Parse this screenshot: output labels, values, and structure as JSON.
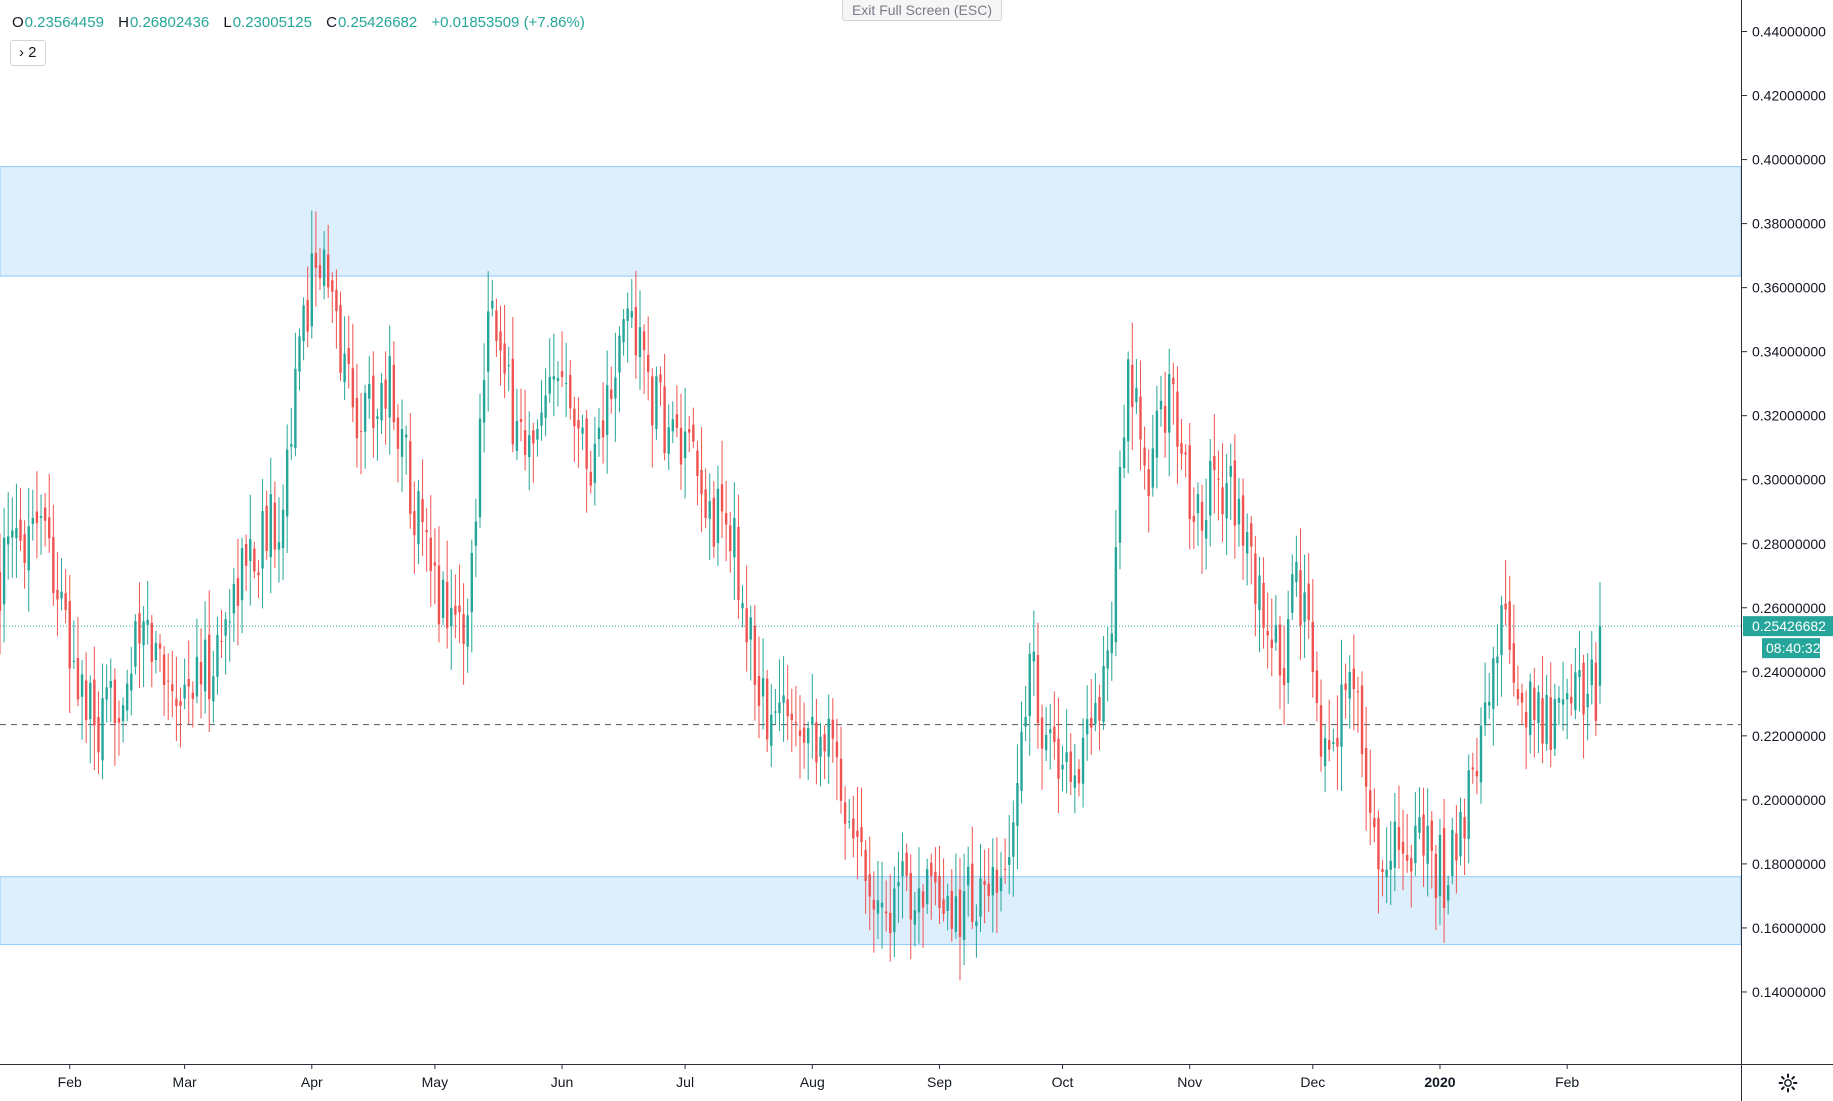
{
  "header": {
    "ohlc": [
      {
        "key": "O",
        "value": "0.23564459"
      },
      {
        "key": "H",
        "value": "0.26802436"
      },
      {
        "key": "L",
        "value": "0.23005125"
      },
      {
        "key": "C",
        "value": "0.25426682"
      }
    ],
    "change": "+0.01853509 (+7.86%)",
    "indicator_toggle": "2",
    "exit_fullscreen": "Exit Full Screen (ESC)"
  },
  "price_badge": {
    "value": "0.25426682",
    "countdown": "08:40:32"
  },
  "colors": {
    "up": "#26a69a",
    "down": "#ef5350",
    "zone": "#bbdefb",
    "zone_border": "#90caf9"
  },
  "chart_data": {
    "type": "candlestick",
    "ylim": [
      0.12,
      0.445
    ],
    "y_ticks": [
      "0.14000000",
      "0.16000000",
      "0.18000000",
      "0.20000000",
      "0.22000000",
      "0.24000000",
      "0.26000000",
      "0.28000000",
      "0.30000000",
      "0.32000000",
      "0.34000000",
      "0.36000000",
      "0.38000000",
      "0.40000000",
      "0.42000000",
      "0.44000000"
    ],
    "x_ticks": [
      {
        "label": "Feb",
        "day": 17
      },
      {
        "label": "Mar",
        "day": 45
      },
      {
        "label": "Apr",
        "day": 76
      },
      {
        "label": "May",
        "day": 106
      },
      {
        "label": "Jun",
        "day": 137
      },
      {
        "label": "Jul",
        "day": 167
      },
      {
        "label": "Aug",
        "day": 198
      },
      {
        "label": "Sep",
        "day": 229
      },
      {
        "label": "Oct",
        "day": 259
      },
      {
        "label": "Nov",
        "day": 290
      },
      {
        "label": "Dec",
        "day": 320
      },
      {
        "label": "2020",
        "day": 351,
        "bold": true
      },
      {
        "label": "Feb",
        "day": 382
      }
    ],
    "x_range": [
      0,
      400
    ],
    "zones": [
      {
        "low": 0.3636,
        "high": 0.3978
      },
      {
        "low": 0.1548,
        "high": 0.176
      }
    ],
    "dashed_level": 0.2235,
    "last_price": 0.25426682,
    "anchors": [
      [
        0,
        0.27
      ],
      [
        10,
        0.295
      ],
      [
        17,
        0.245
      ],
      [
        24,
        0.218
      ],
      [
        35,
        0.252
      ],
      [
        44,
        0.234
      ],
      [
        52,
        0.242
      ],
      [
        58,
        0.27
      ],
      [
        68,
        0.29
      ],
      [
        77,
        0.375
      ],
      [
        87,
        0.32
      ],
      [
        95,
        0.33
      ],
      [
        100,
        0.3
      ],
      [
        105,
        0.268
      ],
      [
        114,
        0.254
      ],
      [
        119,
        0.362
      ],
      [
        123,
        0.328
      ],
      [
        130,
        0.306
      ],
      [
        138,
        0.34
      ],
      [
        143,
        0.305
      ],
      [
        150,
        0.33
      ],
      [
        153,
        0.355
      ],
      [
        160,
        0.322
      ],
      [
        168,
        0.305
      ],
      [
        172,
        0.29
      ],
      [
        178,
        0.285
      ],
      [
        182,
        0.255
      ],
      [
        187,
        0.224
      ],
      [
        194,
        0.23
      ],
      [
        202,
        0.218
      ],
      [
        210,
        0.185
      ],
      [
        215,
        0.165
      ],
      [
        225,
        0.176
      ],
      [
        229,
        0.16
      ],
      [
        236,
        0.17
      ],
      [
        244,
        0.168
      ],
      [
        248,
        0.205
      ],
      [
        251,
        0.245
      ],
      [
        256,
        0.215
      ],
      [
        262,
        0.21
      ],
      [
        267,
        0.225
      ],
      [
        271,
        0.26
      ],
      [
        275,
        0.33
      ],
      [
        280,
        0.3
      ],
      [
        285,
        0.33
      ],
      [
        291,
        0.29
      ],
      [
        296,
        0.3
      ],
      [
        300,
        0.298
      ],
      [
        306,
        0.265
      ],
      [
        313,
        0.24
      ],
      [
        316,
        0.272
      ],
      [
        322,
        0.22
      ],
      [
        330,
        0.235
      ],
      [
        336,
        0.18
      ],
      [
        343,
        0.188
      ],
      [
        353,
        0.176
      ],
      [
        358,
        0.2
      ],
      [
        362,
        0.23
      ],
      [
        366,
        0.255
      ],
      [
        372,
        0.228
      ],
      [
        378,
        0.225
      ],
      [
        384,
        0.236
      ],
      [
        389,
        0.235
      ]
    ],
    "last_candle": {
      "day": 390,
      "open": 0.23564459,
      "high": 0.26802436,
      "low": 0.23005125,
      "close": 0.25426682
    }
  }
}
